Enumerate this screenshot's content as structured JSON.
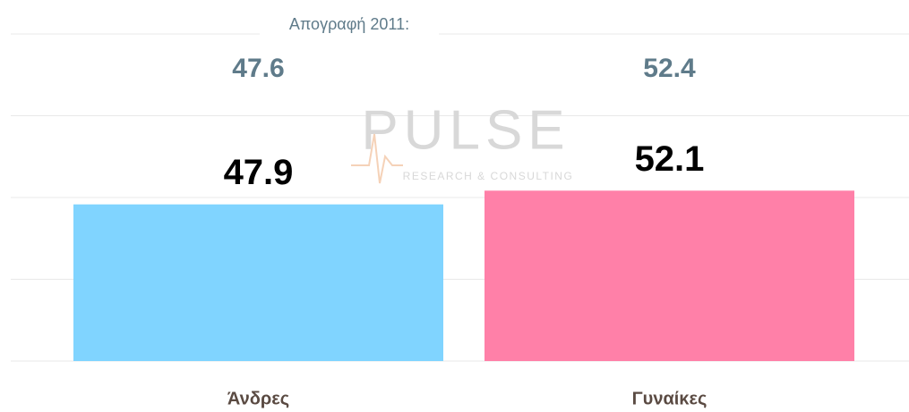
{
  "chart_data": {
    "type": "bar",
    "annotation": "Απογραφή 2011:",
    "categories": [
      "Άνδρες",
      "Γυναίκες"
    ],
    "series": [
      {
        "values": [
          47.9,
          52.1
        ],
        "colors": [
          "#80d4ff",
          "#ff80a8"
        ]
      }
    ],
    "census_values": [
      47.6,
      52.4
    ],
    "ylim": [
      0,
      100
    ],
    "yticks": [
      0,
      25,
      50,
      75,
      100
    ],
    "grid": true,
    "watermark": {
      "brand": "PULSE",
      "tagline": "RESEARCH & CONSULTING"
    }
  }
}
